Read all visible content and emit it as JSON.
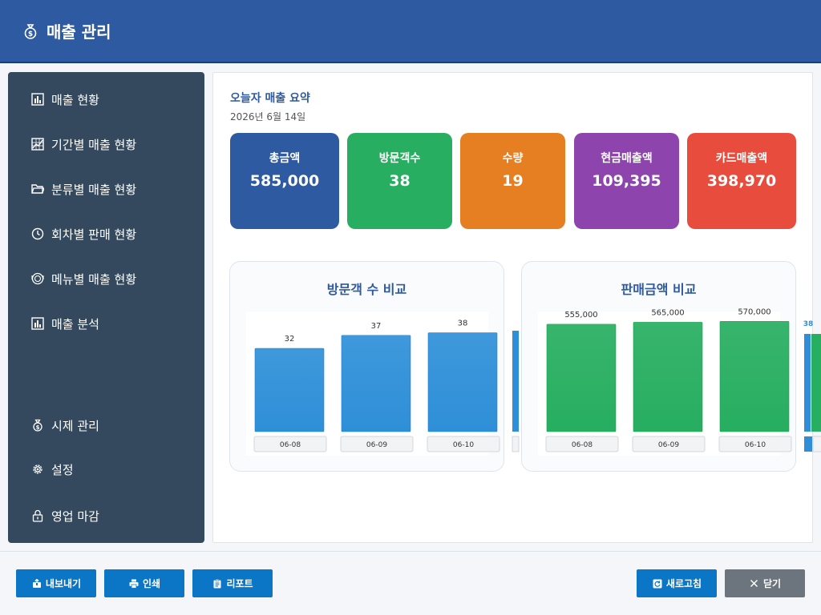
{
  "header": {
    "title": "매출 관리",
    "icon": "money-bag-icon"
  },
  "sidebar": {
    "items": [
      {
        "label": "매출 현황",
        "icon": "bar-chart-icon"
      },
      {
        "label": "기간별 매출 현황",
        "icon": "line-chart-icon"
      },
      {
        "label": "분류별 매출 현황",
        "icon": "folder-icon"
      },
      {
        "label": "회차별 판매 현황",
        "icon": "clock-icon"
      },
      {
        "label": "메뉴별 매출 현황",
        "icon": "plate-icon"
      },
      {
        "label": "매출 분석",
        "icon": "bar-chart-icon"
      },
      {
        "label": "시제 관리",
        "icon": "money-bag-icon"
      },
      {
        "label": "설정",
        "icon": "gear-icon"
      },
      {
        "label": "영업 마감",
        "icon": "lock-icon"
      }
    ]
  },
  "summary": {
    "title": "오늘자 매출 요약",
    "date": "2026년 6월 14일",
    "cards": [
      {
        "label": "총금액",
        "value": "585,000",
        "color": "#2d5aa0"
      },
      {
        "label": "방문객수",
        "value": "38",
        "color": "#27ae60"
      },
      {
        "label": "수량",
        "value": "19",
        "color": "#e67e22"
      },
      {
        "label": "현금매출액",
        "value": "109,395",
        "color": "#8e44ad"
      },
      {
        "label": "카드매출액",
        "value": "398,970",
        "color": "#e74c3c"
      }
    ]
  },
  "chart_data": [
    {
      "type": "bar",
      "title": "방문객 수 비교",
      "categories": [
        "06-08",
        "06-09",
        "06-10"
      ],
      "values": [
        32,
        37,
        38
      ],
      "value_labels": [
        "32",
        "37",
        "38"
      ],
      "ylim": [
        0,
        40
      ],
      "color": "#2e8fd8",
      "overflow_value_label": ""
    },
    {
      "type": "bar",
      "title": "판매금액 비교",
      "categories": [
        "06-08",
        "06-09",
        "06-10"
      ],
      "values": [
        555000,
        565000,
        570000
      ],
      "value_labels": [
        "555,000",
        "565,000",
        "570,000"
      ],
      "ylim": [
        0,
        600000
      ],
      "color": "#27ae60",
      "overflow_value_label": "38"
    }
  ],
  "footer": {
    "export_label": "내보내기",
    "print_label": "인쇄",
    "report_label": "리포트",
    "refresh_label": "새로고침",
    "close_label": "닫기"
  }
}
